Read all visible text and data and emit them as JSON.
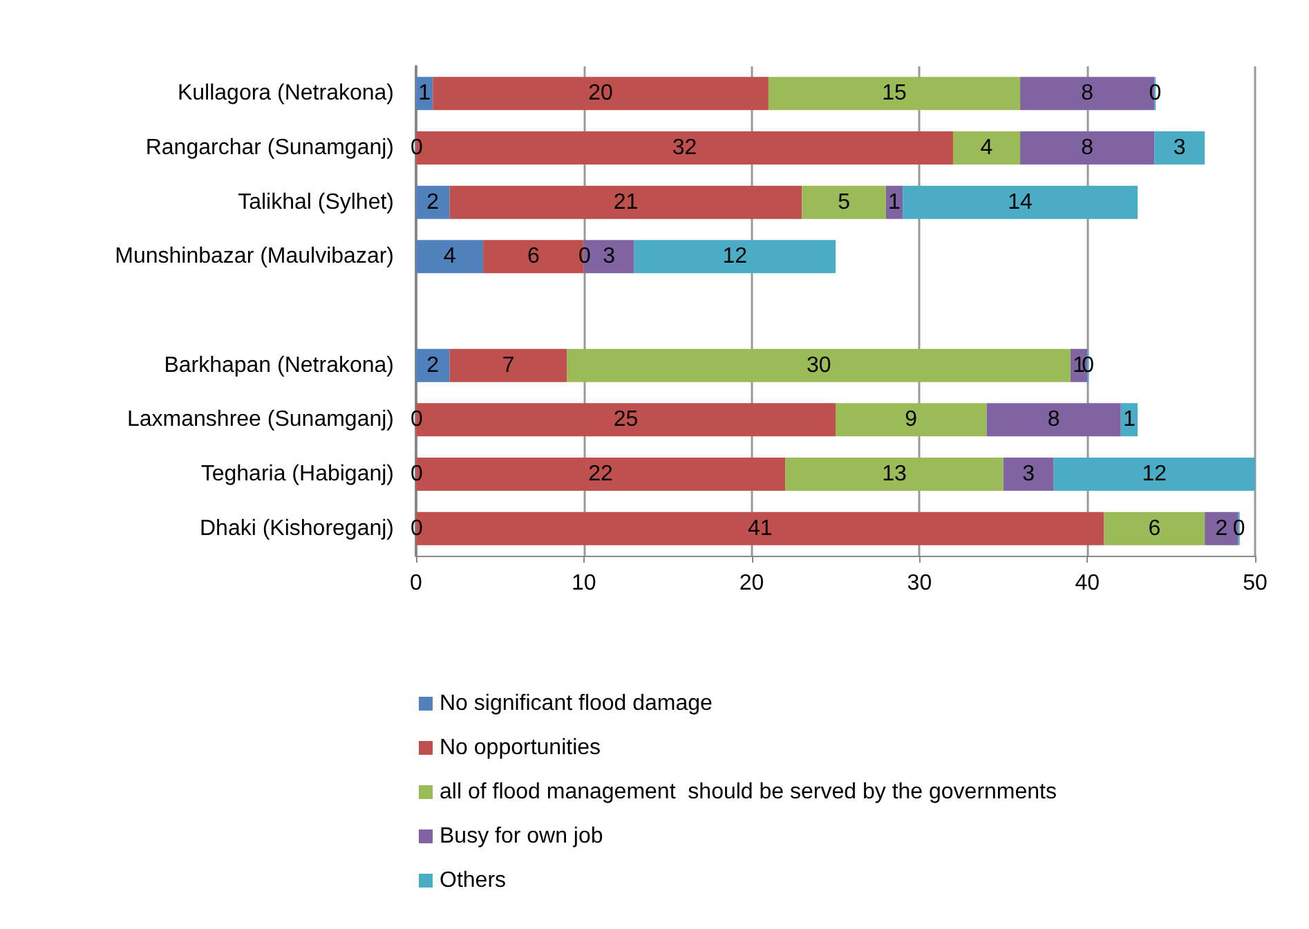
{
  "chart_data": {
    "type": "bar",
    "orientation": "horizontal",
    "stacked": true,
    "data_labels": true,
    "grid": "x",
    "legend": "bottom",
    "categories": [
      "Kullagora (Netrakona)",
      "Rangarchar (Sunamganj)",
      "Talikhal (Sylhet)",
      "Munshinbazar (Maulvibazar)",
      null,
      "Barkhapan (Netrakona)",
      "Laxmanshree (Sunamganj)",
      "Tegharia (Habiganj)",
      "Dhaki (Kishoreganj)"
    ],
    "xlim": [
      0,
      50
    ],
    "xticks": [
      0,
      10,
      20,
      30,
      40,
      50
    ],
    "series": [
      {
        "name": "No significant flood damage",
        "color": "#4f81bd",
        "values": [
          1,
          0,
          2,
          4,
          null,
          2,
          0,
          0,
          0
        ]
      },
      {
        "name": "No opportunities",
        "color": "#c0504d",
        "values": [
          20,
          32,
          21,
          6,
          null,
          7,
          25,
          22,
          41
        ]
      },
      {
        "name": "all of flood management  should be served by the governments",
        "color": "#9bbb59",
        "values": [
          15,
          4,
          5,
          0,
          null,
          30,
          9,
          13,
          6
        ]
      },
      {
        "name": "Busy for own job",
        "color": "#8064a2",
        "values": [
          8,
          8,
          1,
          3,
          null,
          1,
          8,
          3,
          2
        ]
      },
      {
        "name": "Others",
        "color": "#4bacc6",
        "values": [
          0,
          3,
          14,
          12,
          null,
          0,
          1,
          12,
          0
        ]
      }
    ]
  }
}
